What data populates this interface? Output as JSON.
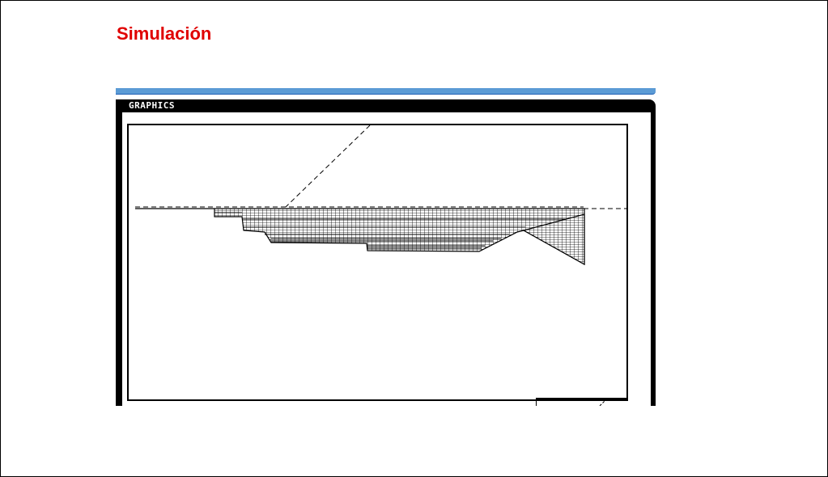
{
  "slide": {
    "title": "Simulación",
    "title_color": "#e00000"
  },
  "window": {
    "title": "GRAPHICS",
    "accent_color": "#5b9bd5",
    "frame_color": "#000000"
  }
}
